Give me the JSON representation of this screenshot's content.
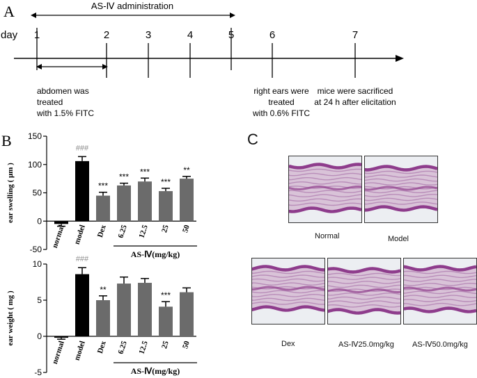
{
  "panel_a": {
    "label": "A",
    "administration": "AS-Ⅳ administration",
    "day_label": "day",
    "days": [
      "1",
      "2",
      "3",
      "4",
      "5",
      "6",
      "7"
    ],
    "note_left": [
      "abdomen was",
      "treated",
      "with 1.5% FITC"
    ],
    "note_mid": [
      "right ears were",
      "treated",
      "with 0.6% FITC"
    ],
    "note_right": [
      "mice were sacrificed",
      "at 24 h after elicitation"
    ]
  },
  "panel_b": {
    "label": "B",
    "group_label": "AS-Ⅳ(mg/kg)"
  },
  "panel_c": {
    "label": "C",
    "captions": [
      "Normal",
      "Model",
      "Dex",
      "AS-Ⅳ25.0mg/kg",
      "AS-Ⅳ50.0mg/kg"
    ]
  },
  "colors": {
    "bar_gray": "#6b6b6b",
    "bar_black": "#000000",
    "sig_gray": "#8a8a8a",
    "tissue": "#8e3c8c"
  },
  "chart_data": [
    {
      "type": "bar",
      "categories": [
        "normal",
        "model",
        "Dex",
        "6.25",
        "12.5",
        "25",
        "50"
      ],
      "values": [
        -5,
        106,
        45,
        63,
        70,
        53,
        75
      ],
      "errors": [
        4,
        8,
        6,
        4,
        6,
        5,
        4
      ],
      "significance": [
        "",
        "###",
        "***",
        "***",
        "***",
        "***",
        "**"
      ],
      "ylabel": "ear swelling ( μm )",
      "yticks": [
        -50,
        0,
        50,
        100,
        150
      ],
      "ylim": [
        -50,
        150
      ]
    },
    {
      "type": "bar",
      "categories": [
        "normal",
        "model",
        "Dex",
        "6.25",
        "12.5",
        "25",
        "50"
      ],
      "values": [
        -0.2,
        8.6,
        5.0,
        7.3,
        7.4,
        4.1,
        6.1
      ],
      "errors": [
        0.2,
        0.9,
        0.6,
        0.9,
        0.6,
        0.7,
        0.6
      ],
      "significance": [
        "",
        "###",
        "**",
        "",
        "",
        "***",
        ""
      ],
      "ylabel": "ear weight ( mg )",
      "yticks": [
        -5,
        0,
        5,
        10
      ],
      "ylim": [
        -5,
        10
      ]
    }
  ]
}
